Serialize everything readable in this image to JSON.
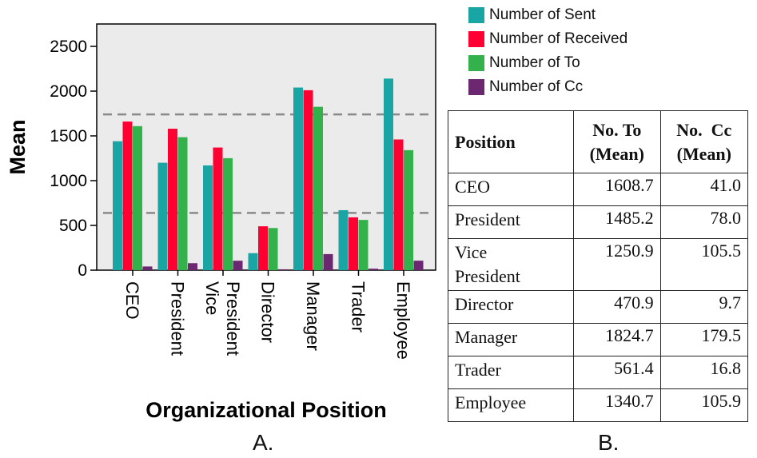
{
  "chart_data": {
    "type": "bar",
    "categories": [
      "CEO",
      "President",
      "Vice President",
      "Director",
      "Manager",
      "Trader",
      "Employee"
    ],
    "category_lines": [
      [
        "CEO"
      ],
      [
        "President"
      ],
      [
        "Vice",
        "President"
      ],
      [
        "Director"
      ],
      [
        "Manager"
      ],
      [
        "Trader"
      ],
      [
        "Employee"
      ]
    ],
    "series": [
      {
        "name": "Number of Sent",
        "color": "#1AA5A5",
        "values": [
          1440,
          1200,
          1170,
          190,
          2040,
          670,
          2140
        ]
      },
      {
        "name": "Number of Received",
        "color": "#FF0033",
        "values": [
          1660,
          1580,
          1370,
          490,
          2010,
          590,
          1460
        ]
      },
      {
        "name": "Number of To",
        "color": "#33B24C",
        "values": [
          1608.7,
          1485.2,
          1250.9,
          470.9,
          1824.7,
          561.4,
          1340.7
        ]
      },
      {
        "name": "Number of Cc",
        "color": "#6B2770",
        "values": [
          41.0,
          78.0,
          105.5,
          9.7,
          179.5,
          16.8,
          105.9
        ]
      }
    ],
    "xlabel": "Organizational Position",
    "ylabel": "Mean",
    "ylim": [
      0,
      2750
    ],
    "yticks": [
      0,
      500,
      1000,
      1500,
      2000,
      2500
    ],
    "reference_lines": [
      1740,
      640
    ],
    "plot_background": "#EBEBEB",
    "legend_position": "top-right"
  },
  "table": {
    "headers": {
      "position": "Position",
      "no_to": [
        "No. To",
        "(Mean)"
      ],
      "no_cc": [
        "No.  Cc",
        "(Mean)"
      ]
    },
    "rows": [
      {
        "position": [
          "CEO"
        ],
        "no_to": "1608.7",
        "no_cc": "41.0"
      },
      {
        "position": [
          "President"
        ],
        "no_to": "1485.2",
        "no_cc": "78.0"
      },
      {
        "position": [
          "Vice",
          "President"
        ],
        "no_to": "1250.9",
        "no_cc": "105.5"
      },
      {
        "position": [
          "Director"
        ],
        "no_to": "470.9",
        "no_cc": "9.7"
      },
      {
        "position": [
          "Manager"
        ],
        "no_to": "1824.7",
        "no_cc": "179.5"
      },
      {
        "position": [
          "Trader"
        ],
        "no_to": "561.4",
        "no_cc": "16.8"
      },
      {
        "position": [
          "Employee"
        ],
        "no_to": "1340.7",
        "no_cc": "105.9"
      }
    ]
  },
  "panel_labels": {
    "a": "A.",
    "b": "B."
  }
}
